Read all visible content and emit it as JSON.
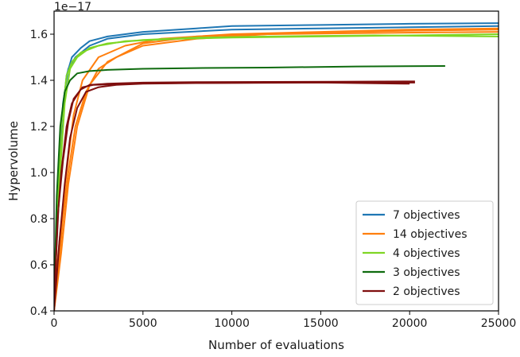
{
  "chart_data": {
    "type": "line",
    "xlabel": "Number of evaluations",
    "ylabel": "Hypervolume",
    "y_scale_label": "1e−17",
    "xlim": [
      0,
      25000
    ],
    "ylim": [
      0.4,
      1.7
    ],
    "x_ticks": [
      0,
      5000,
      10000,
      15000,
      20000,
      25000
    ],
    "y_ticks": [
      0.4,
      0.6,
      0.8,
      1.0,
      1.2,
      1.4,
      1.6
    ],
    "x_tick_labels": [
      "0",
      "5000",
      "10000",
      "15000",
      "20000",
      "25000"
    ],
    "y_tick_labels": [
      "0.4",
      "0.6",
      "0.8",
      "1.0",
      "1.2",
      "1.4",
      "1.6"
    ],
    "grid": false,
    "legend_position": "lower-right",
    "series": [
      {
        "name": "7 objectives",
        "color": "#1f77b4",
        "runs": [
          {
            "x": [
              0,
              150,
              400,
              700,
              1000,
              1500,
              2000,
              3000,
              5000,
              8000,
              10000,
              15000,
              20000,
              25000
            ],
            "y": [
              0.45,
              0.8,
              1.2,
              1.42,
              1.5,
              1.54,
              1.57,
              1.59,
              1.61,
              1.625,
              1.635,
              1.64,
              1.645,
              1.648
            ]
          },
          {
            "x": [
              0,
              200,
              500,
              800,
              1200,
              2000,
              3000,
              5000,
              10000,
              15000,
              20000,
              25000
            ],
            "y": [
              0.5,
              0.9,
              1.3,
              1.45,
              1.5,
              1.55,
              1.58,
              1.6,
              1.62,
              1.625,
              1.63,
              1.635
            ]
          }
        ]
      },
      {
        "name": "14 objectives",
        "color": "#ff7f0e",
        "runs": [
          {
            "x": [
              0,
              200,
              500,
              800,
              1200,
              1800,
              2500,
              3500,
              5000,
              8000,
              12000,
              16000,
              20000,
              25000
            ],
            "y": [
              0.4,
              0.55,
              0.8,
              1.0,
              1.2,
              1.35,
              1.45,
              1.5,
              1.55,
              1.58,
              1.6,
              1.61,
              1.615,
              1.62
            ]
          },
          {
            "x": [
              0,
              300,
              700,
              1100,
              1600,
              2500,
              4000,
              6000,
              10000,
              15000,
              20000,
              25000
            ],
            "y": [
              0.45,
              0.7,
              1.0,
              1.25,
              1.4,
              1.5,
              1.55,
              1.58,
              1.6,
              1.61,
              1.62,
              1.625
            ]
          },
          {
            "x": [
              0,
              400,
              800,
              1300,
              2000,
              3000,
              5000,
              8000,
              12000,
              18000,
              25000
            ],
            "y": [
              0.4,
              0.65,
              0.95,
              1.2,
              1.38,
              1.48,
              1.56,
              1.59,
              1.6,
              1.605,
              1.61
            ]
          }
        ]
      },
      {
        "name": "4 objectives",
        "color": "#7fd624",
        "runs": [
          {
            "x": [
              0,
              150,
              400,
              700,
              1000,
              1500,
              2500,
              4000,
              7000,
              10000,
              15000,
              20000,
              25000
            ],
            "y": [
              0.4,
              0.8,
              1.2,
              1.42,
              1.48,
              1.52,
              1.55,
              1.57,
              1.58,
              1.585,
              1.59,
              1.595,
              1.6
            ]
          },
          {
            "x": [
              0,
              250,
              600,
              900,
              1300,
              2000,
              3000,
              5000,
              8000,
              12000,
              18000,
              25000
            ],
            "y": [
              0.45,
              0.9,
              1.3,
              1.45,
              1.5,
              1.54,
              1.56,
              1.575,
              1.585,
              1.59,
              1.595,
              1.59
            ]
          }
        ]
      },
      {
        "name": "3 objectives",
        "color": "#0f6b0f",
        "runs": [
          {
            "x": [
              0,
              150,
              350,
              600,
              900,
              1300,
              2000,
              3000,
              5000,
              8000,
              12000,
              17000,
              22000
            ],
            "y": [
              0.42,
              0.9,
              1.2,
              1.35,
              1.4,
              1.43,
              1.44,
              1.445,
              1.45,
              1.453,
              1.455,
              1.46,
              1.462
            ]
          }
        ]
      },
      {
        "name": "2 objectives",
        "color": "#7f0f0f",
        "runs": [
          {
            "x": [
              0,
              200,
              400,
              700,
              1000,
              1500,
              2000,
              3000,
              5000,
              8000,
              12000,
              16000,
              20000,
              20300
            ],
            "y": [
              0.42,
              0.8,
              1.0,
              1.2,
              1.3,
              1.36,
              1.38,
              1.385,
              1.39,
              1.392,
              1.393,
              1.394,
              1.395,
              1.395
            ]
          },
          {
            "x": [
              0,
              300,
              600,
              900,
              1300,
              1800,
              2500,
              3500,
              5000,
              8000,
              12000,
              17000,
              20300
            ],
            "y": [
              0.4,
              0.7,
              0.95,
              1.15,
              1.28,
              1.35,
              1.37,
              1.38,
              1.385,
              1.388,
              1.39,
              1.39,
              1.39
            ]
          },
          {
            "x": [
              0,
              250,
              500,
              800,
              1100,
              1600,
              2200,
              3000,
              4500,
              7000,
              11000,
              15000,
              20000
            ],
            "y": [
              0.45,
              0.85,
              1.05,
              1.22,
              1.32,
              1.37,
              1.38,
              1.382,
              1.386,
              1.388,
              1.389,
              1.39,
              1.385
            ]
          }
        ]
      }
    ]
  }
}
